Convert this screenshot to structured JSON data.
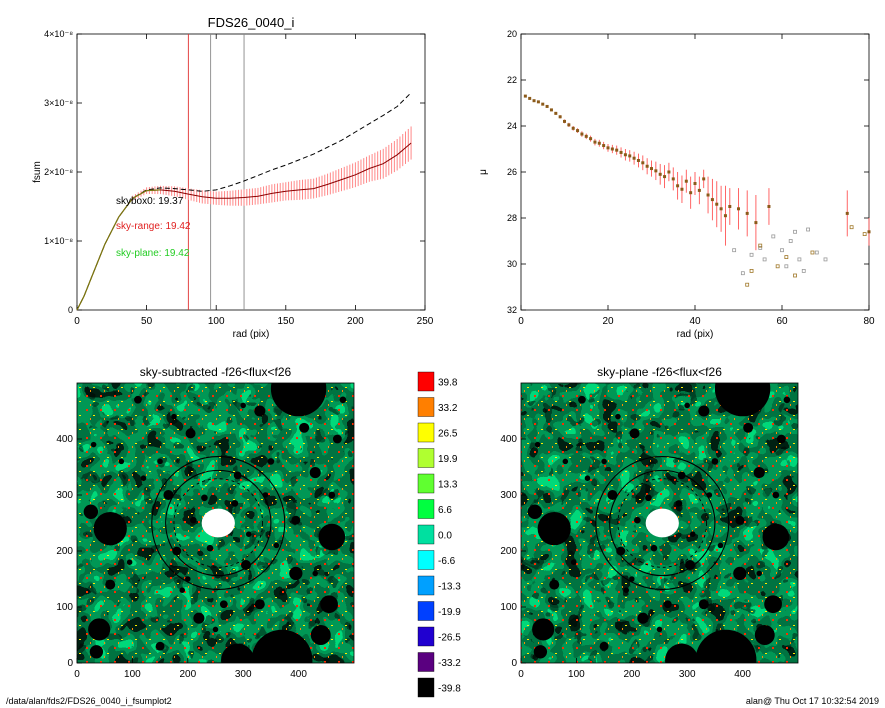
{
  "footer": {
    "path": "/data/alan/fds2/FDS26_0040_i_fsumplot2",
    "stamp": "alan@  Thu Oct 17 10:32:54 2019"
  },
  "chart_data": [
    {
      "id": "fsum",
      "type": "line",
      "title": "FDS26_0040_i",
      "xlabel": "rad (pix)",
      "ylabel": "fsum",
      "xlim": [
        0,
        250
      ],
      "ylim": [
        0,
        4e-08
      ],
      "xticks": [
        "0",
        "50",
        "100",
        "150",
        "200",
        "250"
      ],
      "yticks": [
        "0",
        "1×10⁻⁸",
        "2×10⁻⁸",
        "3×10⁻⁸",
        "4×10⁻⁸"
      ],
      "vlines": [
        {
          "x": 80,
          "color": "#e03030"
        },
        {
          "x": 96,
          "color": "#888888"
        },
        {
          "x": 120,
          "color": "#888888"
        }
      ],
      "annotations": [
        {
          "text": "skybox0: 19.37",
          "color": "#000000"
        },
        {
          "text": "sky-range: 19.42",
          "color": "#e02020"
        },
        {
          "text": "sky-plane: 19.42",
          "color": "#22cc22"
        }
      ],
      "series": [
        {
          "style": "dashed",
          "color": "#000000",
          "x": [
            0,
            5,
            10,
            20,
            30,
            40,
            50,
            60,
            70,
            80,
            90,
            100,
            110,
            120,
            130,
            140,
            150,
            160,
            170,
            180,
            190,
            200,
            210,
            220,
            230,
            240
          ],
          "y": [
            0,
            2e-09,
            4.5e-09,
            9.5e-09,
            1.35e-08,
            1.62e-08,
            1.74e-08,
            1.77e-08,
            1.76e-08,
            1.74e-08,
            1.72e-08,
            1.74e-08,
            1.8e-08,
            1.87e-08,
            1.95e-08,
            2.03e-08,
            2.1e-08,
            2.18e-08,
            2.26e-08,
            2.36e-08,
            2.46e-08,
            2.58e-08,
            2.7e-08,
            2.82e-08,
            2.95e-08,
            3.15e-08
          ]
        },
        {
          "style": "solid",
          "color": "#8b0000",
          "error_color": "#ff8888",
          "x": [
            0,
            5,
            10,
            20,
            30,
            40,
            50,
            60,
            70,
            80,
            90,
            100,
            110,
            120,
            130,
            140,
            150,
            160,
            170,
            180,
            190,
            200,
            210,
            220,
            230,
            240
          ],
          "y": [
            0,
            2e-09,
            4.5e-09,
            9.5e-09,
            1.35e-08,
            1.62e-08,
            1.73e-08,
            1.74e-08,
            1.72e-08,
            1.68e-08,
            1.64e-08,
            1.62e-08,
            1.62e-08,
            1.63e-08,
            1.65e-08,
            1.69e-08,
            1.72e-08,
            1.74e-08,
            1.76e-08,
            1.82e-08,
            1.89e-08,
            1.96e-08,
            2.05e-08,
            2.12e-08,
            2.25e-08,
            2.42e-08
          ],
          "err": [
            0,
            0,
            0,
            1e-10,
            2e-10,
            3e-10,
            4e-10,
            5e-10,
            6e-10,
            7e-10,
            8e-10,
            8e-10,
            9e-10,
            1e-09,
            1e-09,
            1.1e-09,
            1.1e-09,
            1.2e-09,
            1.2e-09,
            1.3e-09,
            1.4e-09,
            1.5e-09,
            1.6e-09,
            1.8e-09,
            1.9e-09,
            2e-09
          ]
        }
      ]
    },
    {
      "id": "mu",
      "type": "scatter",
      "title": "",
      "xlabel": "rad (pix)",
      "ylabel": "μ",
      "xlim": [
        0,
        80
      ],
      "ylim": [
        32,
        20
      ],
      "xticks": [
        "0",
        "20",
        "40",
        "60",
        "80"
      ],
      "yticks": [
        "20",
        "22",
        "24",
        "26",
        "28",
        "30",
        "32"
      ],
      "series": [
        {
          "color": "#8b5a1a",
          "error_color": "#ff5555",
          "x": [
            1,
            2,
            3,
            4,
            5,
            6,
            7,
            8,
            9,
            10,
            11,
            12,
            13,
            14,
            15,
            16,
            17,
            18,
            19,
            20,
            21,
            22,
            23,
            24,
            25,
            26,
            27,
            28,
            29,
            30,
            31,
            32,
            33,
            34,
            35,
            36,
            37,
            38,
            39,
            40,
            41,
            42,
            43,
            44,
            45,
            46,
            47,
            48,
            50,
            52,
            54,
            57,
            75,
            80
          ],
          "y": [
            22.7,
            22.8,
            22.9,
            22.95,
            23.05,
            23.15,
            23.3,
            23.45,
            23.6,
            23.8,
            23.95,
            24.1,
            24.2,
            24.35,
            24.45,
            24.55,
            24.7,
            24.75,
            24.85,
            24.95,
            25.0,
            25.05,
            25.15,
            25.25,
            25.3,
            25.4,
            25.5,
            25.6,
            25.75,
            25.85,
            25.95,
            26.1,
            26.2,
            26.0,
            26.3,
            26.6,
            26.75,
            26.4,
            26.9,
            26.5,
            26.8,
            26.3,
            27.0,
            27.2,
            27.4,
            27.6,
            27.9,
            27.5,
            27.6,
            27.8,
            28.2,
            27.5,
            27.8,
            28.6
          ],
          "err": [
            0.02,
            0.02,
            0.03,
            0.03,
            0.04,
            0.04,
            0.05,
            0.06,
            0.07,
            0.08,
            0.09,
            0.1,
            0.1,
            0.12,
            0.12,
            0.13,
            0.14,
            0.15,
            0.16,
            0.17,
            0.18,
            0.2,
            0.22,
            0.25,
            0.25,
            0.28,
            0.3,
            0.32,
            0.35,
            0.35,
            0.4,
            0.45,
            0.5,
            0.4,
            0.5,
            0.6,
            0.6,
            0.5,
            0.7,
            0.5,
            0.6,
            0.4,
            0.8,
            0.9,
            1.0,
            1.0,
            1.3,
            0.8,
            0.9,
            1.0,
            1.2,
            0.8,
            1.0,
            0.6
          ]
        },
        {
          "marker": "open-square",
          "color": "#999999",
          "x": [
            49,
            51,
            53,
            55,
            56,
            58,
            60,
            61,
            62,
            63,
            64,
            65,
            66,
            68,
            70
          ],
          "y": [
            29.4,
            30.4,
            29.6,
            29.3,
            29.8,
            28.8,
            29.4,
            30.1,
            29.0,
            28.6,
            29.8,
            30.3,
            28.5,
            29.5,
            29.8
          ]
        },
        {
          "marker": "open-square",
          "color": "#a07828",
          "x": [
            52,
            53,
            55,
            59,
            61,
            63,
            67,
            76,
            79
          ],
          "y": [
            30.9,
            30.3,
            29.2,
            30.1,
            29.7,
            30.5,
            29.5,
            28.4,
            28.7
          ]
        }
      ]
    },
    {
      "id": "map-left",
      "type": "heatmap",
      "title": "sky-subtracted -f26<flux<f26",
      "xlim": [
        0,
        500
      ],
      "ylim": [
        0,
        500
      ],
      "xticks": [
        "0",
        "100",
        "200",
        "300",
        "400"
      ],
      "yticks": [
        "0",
        "100",
        "200",
        "300",
        "400"
      ]
    },
    {
      "id": "map-right",
      "type": "heatmap",
      "title": "sky-plane -f26<flux<f26",
      "xlim": [
        0,
        500
      ],
      "ylim": [
        0,
        500
      ],
      "xticks": [
        "0",
        "100",
        "200",
        "300",
        "400"
      ],
      "yticks": [
        "0",
        "100",
        "200",
        "300",
        "400"
      ]
    },
    {
      "id": "colorbar",
      "type": "table",
      "levels": [
        "39.8",
        "33.2",
        "26.5",
        "19.9",
        "13.3",
        "6.6",
        "0.0",
        "-6.6",
        "-13.3",
        "-19.9",
        "-26.5",
        "-33.2",
        "-39.8"
      ],
      "colors": [
        "#ff0000",
        "#ff7f00",
        "#ffff00",
        "#b0ff30",
        "#60ff30",
        "#00ff40",
        "#00e0a0",
        "#00ffff",
        "#00a0ff",
        "#0040ff",
        "#2000d0",
        "#5a0080",
        "#000000"
      ]
    }
  ]
}
